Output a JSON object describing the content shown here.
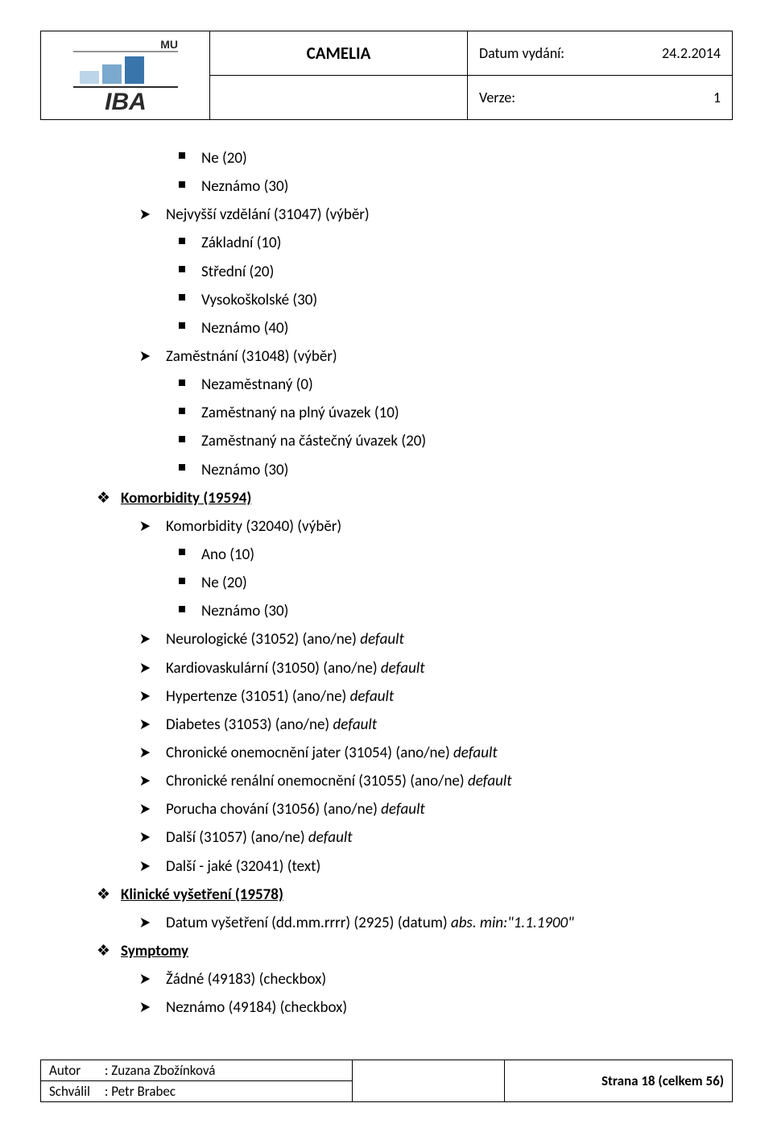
{
  "header": {
    "logo": {
      "top_label": "MU",
      "bottom_label": "IBA",
      "bar_colors": [
        "#bdd5e9",
        "#7ba8cd",
        "#3975ab"
      ],
      "text_color": "#2a2a2a"
    },
    "title": "CAMELIA",
    "issue_label": "Datum vydání:",
    "issue_value": "24.2.2014",
    "version_label": "Verze:",
    "version_value": "1"
  },
  "content": {
    "items": [
      {
        "level": "square",
        "text": "Ne (20)"
      },
      {
        "level": "square",
        "text": "Neznámo (30)"
      },
      {
        "level": "arrow",
        "text": "Nejvyšší vzdělání (31047) (výběr)"
      },
      {
        "level": "square",
        "text": "Základní (10)"
      },
      {
        "level": "square",
        "text": "Střední (20)"
      },
      {
        "level": "square",
        "text": "Vysokoškolské (30)"
      },
      {
        "level": "square",
        "text": "Neznámo (40)"
      },
      {
        "level": "arrow",
        "text": "Zaměstnání (31048) (výběr)"
      },
      {
        "level": "square",
        "text": "Nezaměstnaný (0)"
      },
      {
        "level": "square",
        "text": "Zaměstnaný na plný úvazek (10)"
      },
      {
        "level": "square",
        "text": "Zaměstnaný na částečný úvazek (20)"
      },
      {
        "level": "square",
        "text": "Neznámo (30)"
      },
      {
        "level": "diamond",
        "bold": true,
        "underline": true,
        "text": "Komorbidity (19594)"
      },
      {
        "level": "arrow",
        "text": "Komorbidity (32040) (výběr)"
      },
      {
        "level": "square",
        "text": "Ano (10)"
      },
      {
        "level": "square",
        "text": "Ne (20)"
      },
      {
        "level": "square",
        "text": "Neznámo (30)"
      },
      {
        "level": "arrow",
        "parts": [
          {
            "t": "Neurologické (31052) (ano/ne) "
          },
          {
            "t": "default",
            "italic": true
          }
        ]
      },
      {
        "level": "arrow",
        "parts": [
          {
            "t": "Kardiovaskulární (31050) (ano/ne) "
          },
          {
            "t": "default",
            "italic": true
          }
        ]
      },
      {
        "level": "arrow",
        "parts": [
          {
            "t": "Hypertenze (31051) (ano/ne) "
          },
          {
            "t": "default",
            "italic": true
          }
        ]
      },
      {
        "level": "arrow",
        "parts": [
          {
            "t": "Diabetes (31053) (ano/ne) "
          },
          {
            "t": "default",
            "italic": true
          }
        ]
      },
      {
        "level": "arrow",
        "parts": [
          {
            "t": "Chronické onemocnění jater (31054) (ano/ne) "
          },
          {
            "t": "default",
            "italic": true
          }
        ]
      },
      {
        "level": "arrow",
        "parts": [
          {
            "t": "Chronické renální onemocnění (31055) (ano/ne) "
          },
          {
            "t": "default",
            "italic": true
          }
        ]
      },
      {
        "level": "arrow",
        "parts": [
          {
            "t": "Porucha chování (31056) (ano/ne) "
          },
          {
            "t": "default",
            "italic": true
          }
        ]
      },
      {
        "level": "arrow",
        "parts": [
          {
            "t": "Další (31057) (ano/ne) "
          },
          {
            "t": "default",
            "italic": true
          }
        ]
      },
      {
        "level": "arrow",
        "text": "Další - jaké (32041) (text)"
      },
      {
        "level": "diamond",
        "bold": true,
        "underline": true,
        "text": "Klinické vyšetření (19578)"
      },
      {
        "level": "arrow",
        "parts": [
          {
            "t": "Datum vyšetření (dd.mm.rrrr) (2925) (datum) "
          },
          {
            "t": "abs. min:\"1.1.1900\"",
            "italic": true
          }
        ]
      },
      {
        "level": "diamond",
        "bold": true,
        "underline": true,
        "text": "Symptomy"
      },
      {
        "level": "arrow",
        "text": "Žádné (49183) (checkbox)"
      },
      {
        "level": "arrow",
        "text": "Neznámo (49184) (checkbox)"
      }
    ]
  },
  "footer": {
    "author_label": "Autor",
    "author_value": ": Zuzana Zbožínková",
    "approved_label": "Schválil",
    "approved_value": ": Petr Brabec",
    "page_label": "Strana 18 (celkem 56)"
  }
}
